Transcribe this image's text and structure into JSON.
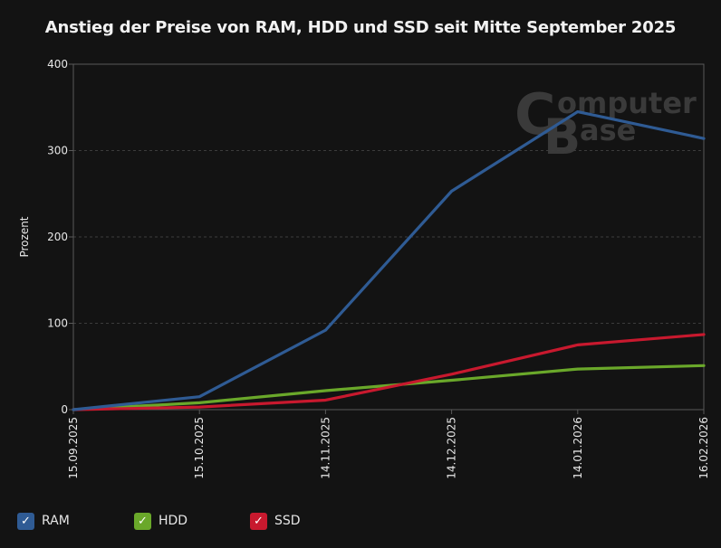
{
  "chart_data": {
    "type": "line",
    "title": "Anstieg der Preise von RAM, HDD und SSD seit Mitte September 2025",
    "xlabel": "",
    "ylabel": "Prozent",
    "categories": [
      "15.09.2025",
      "15.10.2025",
      "14.11.2025",
      "14.12.2025",
      "14.01.2026",
      "16.02.2026"
    ],
    "ylim": [
      0,
      400
    ],
    "yticks": [
      0,
      100,
      200,
      300,
      400
    ],
    "grid": true,
    "legend_position": "bottom-left",
    "series": [
      {
        "name": "RAM",
        "color": "#2f5b94",
        "values": [
          0,
          15,
          92,
          253,
          345,
          314
        ]
      },
      {
        "name": "HDD",
        "color": "#6aa82a",
        "values": [
          0,
          8,
          22,
          34,
          47,
          51
        ]
      },
      {
        "name": "SSD",
        "color": "#c8192e",
        "values": [
          0,
          3,
          11,
          41,
          75,
          87
        ]
      }
    ]
  },
  "watermark": {
    "line1": "omputer",
    "line2": "ase",
    "letter1": "C",
    "letter2": "B"
  },
  "colors": {
    "background": "#131313",
    "grid": "#3c3c3c",
    "axis": "#5a5a5a"
  }
}
